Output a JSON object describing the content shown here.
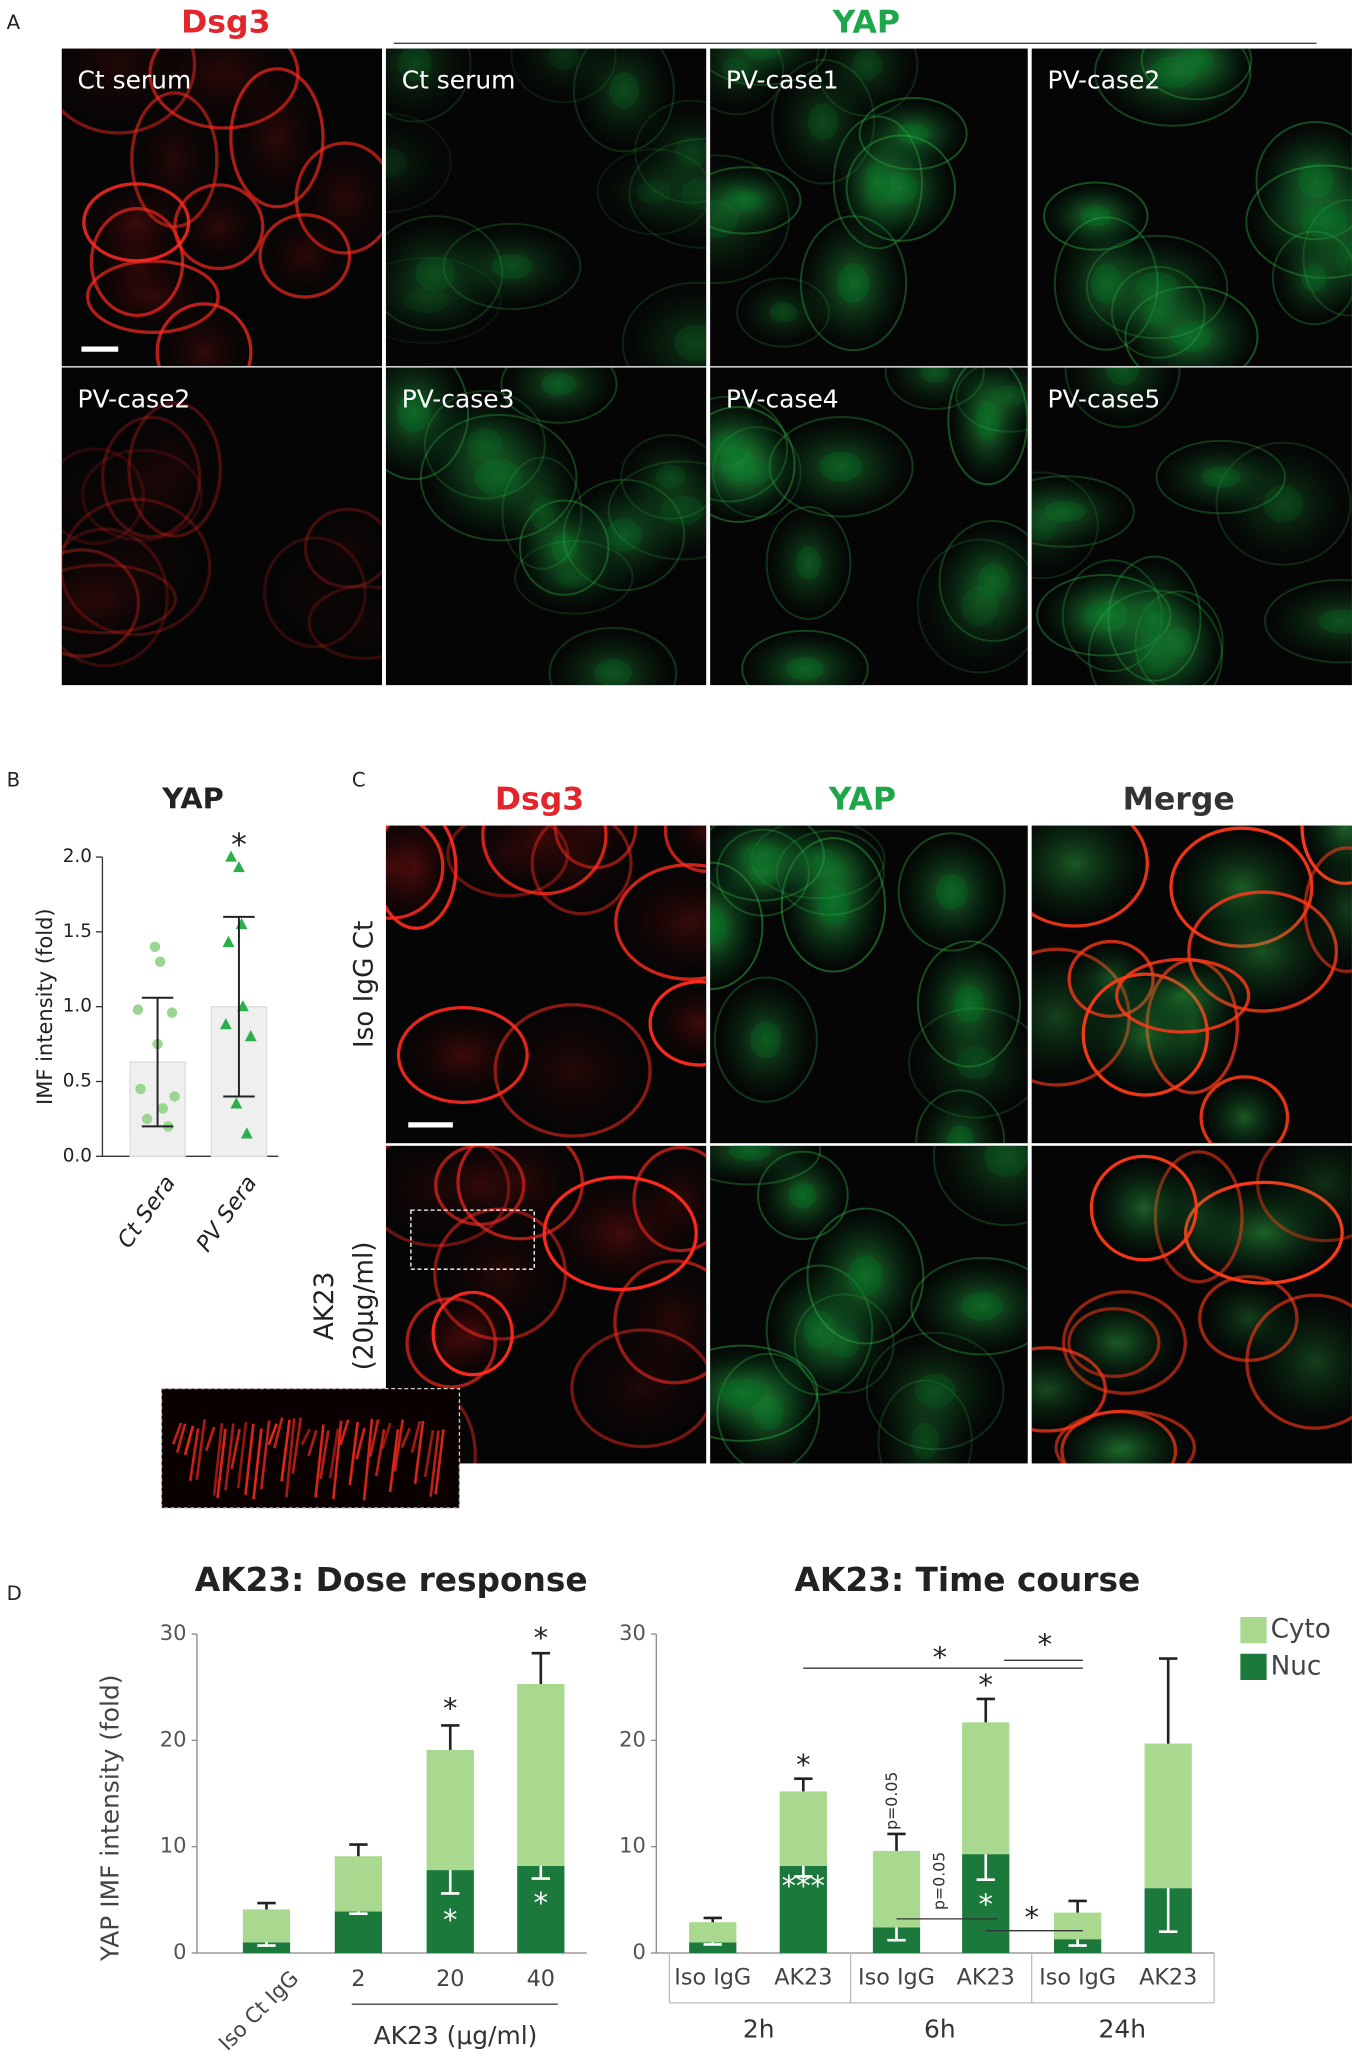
{
  "panels": {
    "labels": [
      "A",
      "B",
      "C",
      "D"
    ]
  },
  "panel_a": {
    "stain_titles": [
      "Dsg3",
      "YAP"
    ],
    "images": [
      [
        "Ct serum",
        "Ct serum",
        "PV-case1",
        "PV-case2"
      ],
      [
        "PV-case2",
        "PV-case3",
        "PV-case4",
        "PV-case5"
      ]
    ]
  },
  "panel_c": {
    "column_titles": [
      "Dsg3",
      "YAP",
      "Merge"
    ],
    "row_labels": [
      [
        "Iso IgG Ct"
      ],
      [
        "AK23",
        "(20μg/ml)"
      ]
    ]
  },
  "chart_data": [
    {
      "type": "bar_scatter",
      "title": "YAP",
      "y_label": "IMF intensity (fold)",
      "categories": [
        "Ct Sera",
        "PV Sera"
      ],
      "values": [
        0.63,
        1.0
      ],
      "errors": [
        0.43,
        0.6
      ],
      "points": [
        [
          1.4,
          1.3,
          0.98,
          0.96,
          0.75,
          0.45,
          0.4,
          0.32,
          0.25,
          0.2
        ],
        [
          2.0,
          1.93,
          1.55,
          1.43,
          1.0,
          0.88,
          0.8,
          0.35,
          0.15
        ]
      ],
      "markers": [
        "circle",
        "triangle"
      ],
      "colors": [
        "#9ad591",
        "#2aaf4a"
      ],
      "bar_color": "#efefef",
      "ylim": [
        0,
        2.0
      ],
      "yticks": [
        {
          "value": 0,
          "label": "0.0"
        },
        {
          "value": 0.5,
          "label": "0.5"
        },
        {
          "value": 1.0,
          "label": "1.0"
        },
        {
          "value": 1.5,
          "label": "1.5"
        },
        {
          "value": 2.0,
          "label": "2.0"
        }
      ],
      "annotations": [
        "*"
      ]
    },
    {
      "type": "stacked_bar",
      "title": "AK23: Dose response",
      "y_label": "YAP IMF intensity (fold)",
      "x_label": "AK23 (μg/ml)",
      "categories": [
        "Iso Ct IgG",
        "2",
        "20",
        "40"
      ],
      "series": [
        {
          "color": "#1b7a3b",
          "values": [
            1,
            3.9,
            7.8,
            8.2
          ],
          "errors": [
            0.3,
            0.2,
            2.2,
            1.2
          ]
        },
        {
          "color": "#a8d98e",
          "values": [
            3.1,
            5.2,
            11.3,
            17.1
          ],
          "errors": [
            0.6,
            1.1,
            2.3,
            2.9
          ]
        }
      ],
      "ylim": [
        0,
        30
      ],
      "yticks": [
        0,
        10,
        20,
        30
      ],
      "annotations": [
        "*",
        "*",
        "*",
        "*"
      ]
    },
    {
      "type": "stacked_bar",
      "title": "AK23: Time course",
      "categories": [
        "Iso IgG",
        "AK23",
        "Iso IgG",
        "AK23",
        "Iso IgG",
        "AK23"
      ],
      "groups": [
        "2h",
        "6h",
        "24h"
      ],
      "series": [
        {
          "name": "Nuc",
          "color": "#1b7a3b",
          "values": [
            1,
            8.2,
            2.4,
            9.3,
            1.3,
            6.1
          ],
          "errors": [
            0.2,
            1.0,
            1.2,
            2.4,
            0.6,
            4.1
          ]
        },
        {
          "name": "Cyto",
          "color": "#a8d98e",
          "values": [
            1.9,
            7.0,
            7.2,
            12.4,
            2.5,
            13.6
          ],
          "errors": [
            0.4,
            1.2,
            1.6,
            2.2,
            1.1,
            8.0
          ]
        }
      ],
      "ylim": [
        0,
        30
      ],
      "yticks": [
        0,
        10,
        20,
        30
      ],
      "legend": "upper right",
      "annotations": [
        "*",
        "***",
        "p=0.05",
        "*",
        "*",
        "p=0.05",
        "*",
        "*",
        "*"
      ]
    }
  ]
}
